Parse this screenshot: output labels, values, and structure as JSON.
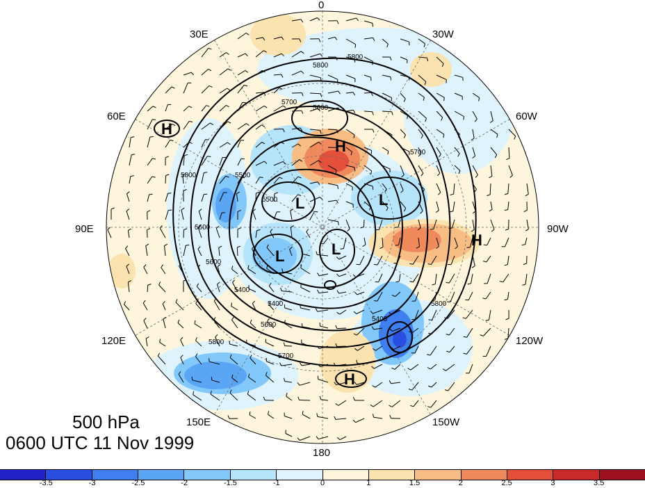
{
  "map": {
    "level": "500 hPa",
    "datetime": "0600 UTC 11 Nov 1999",
    "longitude_labels": [
      {
        "text": "0",
        "name": "lon-label-0"
      },
      {
        "text": "30W",
        "name": "lon-label-30w"
      },
      {
        "text": "60W",
        "name": "lon-label-60w"
      },
      {
        "text": "90W",
        "name": "lon-label-90w"
      },
      {
        "text": "120W",
        "name": "lon-label-120w"
      },
      {
        "text": "150W",
        "name": "lon-label-150w"
      },
      {
        "text": "180",
        "name": "lon-label-180"
      },
      {
        "text": "150E",
        "name": "lon-label-150e"
      },
      {
        "text": "120E",
        "name": "lon-label-120e"
      },
      {
        "text": "90E",
        "name": "lon-label-90e"
      },
      {
        "text": "60E",
        "name": "lon-label-60e"
      },
      {
        "text": "30E",
        "name": "lon-label-30e"
      }
    ],
    "pressure_centers": [
      "H",
      "H",
      "H",
      "H",
      "L",
      "L",
      "L",
      "L"
    ],
    "contour_labels": [
      "5800",
      "5800",
      "5700",
      "5600",
      "5500",
      "5500",
      "5700",
      "5800",
      "5600",
      "5600",
      "5400",
      "5800",
      "5400",
      "5600",
      "5700",
      "5800",
      "5400"
    ]
  },
  "colorbar": {
    "tick_labels": [
      "-3.5",
      "-3",
      "-2.5",
      "-2",
      "-1.5",
      "-1",
      "0",
      "1",
      "1.5",
      "2",
      "2.5",
      "3",
      "3.5"
    ],
    "colors": [
      "#2020c8",
      "#2a4fe0",
      "#3f7ff0",
      "#5aa6f5",
      "#82c8fa",
      "#b6e4fb",
      "#dff3fd",
      "#fdf6dc",
      "#fbe3b0",
      "#f7bd84",
      "#f08a5c",
      "#e4503c",
      "#c92a2a",
      "#9c1020"
    ]
  }
}
